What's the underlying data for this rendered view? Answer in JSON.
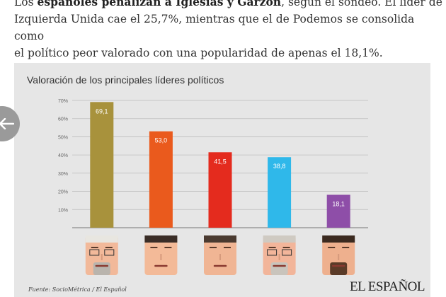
{
  "article": {
    "line1_a": "Los ",
    "line1_bold": "españoles penalizan a Iglesias y Garzón",
    "line1_b": ", según el sondeo. El líder de",
    "line2": "Izquierda Unida cae el 25,7%, mientras que el de Podemos se consolida como",
    "line3": "el político peor valorado con una popularidad de apenas el 18,1%."
  },
  "nav": {
    "back_icon": "arrow-left-icon"
  },
  "chart_data": {
    "type": "bar",
    "title": "Valoración de los principales líderes políticos",
    "categories": [
      "",
      "",
      "",
      "",
      ""
    ],
    "values": [
      69.1,
      53.0,
      41.5,
      38.8,
      18.1
    ],
    "labels": [
      "69,1",
      "53,0",
      "41,5",
      "38,8",
      "18,1"
    ],
    "colors": [
      "#a8923c",
      "#ea5a1d",
      "#e42b1e",
      "#2fb8ea",
      "#8e4ea8"
    ],
    "yticks": [
      "70%",
      "60%",
      "50%",
      "40%",
      "30%",
      "20%",
      "10%"
    ],
    "ylim": [
      0,
      70
    ],
    "grid": true,
    "legend": "none"
  },
  "footer": {
    "source": "Fuente: SocioMétrica / El Español",
    "brand": "EL ESPAÑOL"
  }
}
